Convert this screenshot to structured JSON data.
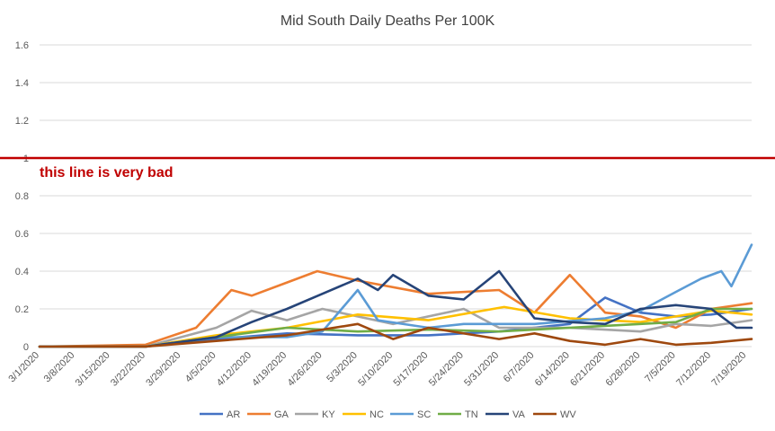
{
  "chart_data": {
    "type": "line",
    "title": "Mid South Daily Deaths Per 100K",
    "xlabel": "",
    "ylabel": "",
    "ylim": [
      0,
      1.6
    ],
    "yticks": [
      "0",
      "0.2",
      "0.4",
      "0.6",
      "0.8",
      "1",
      "1.2",
      "1.4",
      "1.6"
    ],
    "xtick_labels": [
      "3/1/2020",
      "3/8/2020",
      "3/15/2020",
      "3/22/2020",
      "3/29/2020",
      "4/5/2020",
      "4/12/2020",
      "4/19/2020",
      "4/26/2020",
      "5/3/2020",
      "5/10/2020",
      "5/17/2020",
      "5/24/2020",
      "5/31/2020",
      "6/7/2020",
      "6/14/2020",
      "6/21/2020",
      "6/28/2020",
      "7/5/2020",
      "7/12/2020",
      "7/19/2020"
    ],
    "x_start": "3/1/2020",
    "x_end": "7/20/2020",
    "grid": true,
    "legend_position": "bottom",
    "threshold": {
      "value": 1,
      "color": "#c00000",
      "label": "this line is very bad"
    },
    "series": [
      {
        "name": "AR",
        "color": "#4472c4",
        "dates": [
          "3/1/2020",
          "3/22/2020",
          "4/5/2020",
          "4/19/2020",
          "5/3/2020",
          "5/17/2020",
          "5/31/2020",
          "6/14/2020",
          "6/21/2020",
          "6/28/2020",
          "7/5/2020",
          "7/12/2020",
          "7/20/2020"
        ],
        "values": [
          0,
          0,
          0.04,
          0.07,
          0.06,
          0.06,
          0.08,
          0.12,
          0.26,
          0.18,
          0.16,
          0.17,
          0.2
        ]
      },
      {
        "name": "GA",
        "color": "#ed7d31",
        "dates": [
          "3/1/2020",
          "3/22/2020",
          "4/1/2020",
          "4/8/2020",
          "4/12/2020",
          "4/19/2020",
          "4/25/2020",
          "5/3/2020",
          "5/17/2020",
          "5/31/2020",
          "6/7/2020",
          "6/14/2020",
          "6/21/2020",
          "6/28/2020",
          "7/5/2020",
          "7/12/2020",
          "7/20/2020"
        ],
        "values": [
          0,
          0.01,
          0.1,
          0.3,
          0.27,
          0.34,
          0.4,
          0.35,
          0.28,
          0.3,
          0.18,
          0.38,
          0.18,
          0.16,
          0.1,
          0.2,
          0.23
        ]
      },
      {
        "name": "KY",
        "color": "#a5a5a5",
        "dates": [
          "3/1/2020",
          "3/22/2020",
          "4/5/2020",
          "4/12/2020",
          "4/19/2020",
          "4/26/2020",
          "5/10/2020",
          "5/24/2020",
          "5/31/2020",
          "6/14/2020",
          "6/28/2020",
          "7/5/2020",
          "7/12/2020",
          "7/20/2020"
        ],
        "values": [
          0,
          0,
          0.1,
          0.19,
          0.14,
          0.2,
          0.12,
          0.2,
          0.1,
          0.1,
          0.08,
          0.12,
          0.11,
          0.14
        ]
      },
      {
        "name": "NC",
        "color": "#ffc000",
        "dates": [
          "3/1/2020",
          "3/22/2020",
          "4/5/2020",
          "4/19/2020",
          "5/3/2020",
          "5/17/2020",
          "6/1/2020",
          "6/14/2020",
          "6/28/2020",
          "7/5/2020",
          "7/12/2020",
          "7/20/2020"
        ],
        "values": [
          0,
          0,
          0.06,
          0.1,
          0.17,
          0.14,
          0.21,
          0.15,
          0.13,
          0.16,
          0.19,
          0.17
        ]
      },
      {
        "name": "SC",
        "color": "#5b9bd5",
        "dates": [
          "3/1/2020",
          "3/22/2020",
          "4/5/2020",
          "4/19/2020",
          "4/26/2020",
          "5/3/2020",
          "5/7/2020",
          "5/17/2020",
          "5/24/2020",
          "6/7/2020",
          "6/21/2020",
          "6/28/2020",
          "7/5/2020",
          "7/10/2020",
          "7/14/2020",
          "7/16/2020",
          "7/20/2020"
        ],
        "values": [
          0,
          0,
          0.05,
          0.05,
          0.08,
          0.3,
          0.14,
          0.1,
          0.12,
          0.12,
          0.15,
          0.19,
          0.29,
          0.36,
          0.4,
          0.32,
          0.54
        ]
      },
      {
        "name": "TN",
        "color": "#70ad47",
        "dates": [
          "3/1/2020",
          "3/22/2020",
          "4/5/2020",
          "4/19/2020",
          "5/3/2020",
          "5/17/2020",
          "5/31/2020",
          "6/14/2020",
          "6/28/2020",
          "7/5/2020",
          "7/12/2020",
          "7/20/2020"
        ],
        "values": [
          0,
          0,
          0.05,
          0.1,
          0.08,
          0.09,
          0.08,
          0.1,
          0.12,
          0.13,
          0.2,
          0.2
        ]
      },
      {
        "name": "VA",
        "color": "#264478",
        "dates": [
          "3/1/2020",
          "3/22/2020",
          "4/5/2020",
          "4/12/2020",
          "4/19/2020",
          "4/26/2020",
          "5/3/2020",
          "5/7/2020",
          "5/10/2020",
          "5/17/2020",
          "5/24/2020",
          "5/31/2020",
          "6/7/2020",
          "6/14/2020",
          "6/21/2020",
          "6/28/2020",
          "7/5/2020",
          "7/12/2020",
          "7/17/2020",
          "7/20/2020"
        ],
        "values": [
          0,
          0,
          0.05,
          0.13,
          0.2,
          0.28,
          0.36,
          0.3,
          0.38,
          0.27,
          0.25,
          0.4,
          0.15,
          0.13,
          0.12,
          0.2,
          0.22,
          0.2,
          0.1,
          0.1
        ]
      },
      {
        "name": "WV",
        "color": "#9e480e",
        "dates": [
          "3/1/2020",
          "3/22/2020",
          "4/5/2020",
          "4/19/2020",
          "5/3/2020",
          "5/10/2020",
          "5/17/2020",
          "5/31/2020",
          "6/7/2020",
          "6/14/2020",
          "6/21/2020",
          "6/28/2020",
          "7/5/2020",
          "7/12/2020",
          "7/20/2020"
        ],
        "values": [
          0,
          0,
          0.03,
          0.06,
          0.12,
          0.04,
          0.1,
          0.04,
          0.07,
          0.03,
          0.01,
          0.04,
          0.01,
          0.02,
          0.04
        ]
      }
    ]
  }
}
